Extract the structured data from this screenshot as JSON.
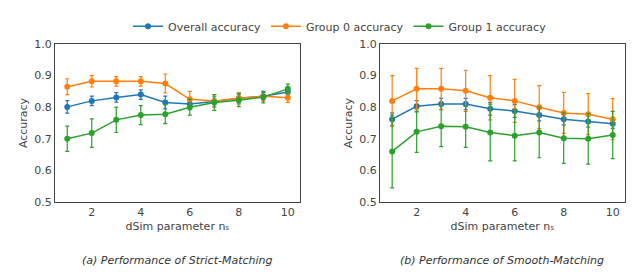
{
  "chart_data": [
    {
      "type": "line",
      "title": "(a) Performance of Strict-Matching",
      "x_label": "dSim parameter nₛ",
      "y_label": "Accuracy",
      "x": [
        1,
        2,
        3,
        4,
        5,
        6,
        7,
        8,
        9,
        10
      ],
      "xlim": [
        0.5,
        10.5
      ],
      "xticks": [
        2,
        4,
        6,
        8,
        10
      ],
      "ylim": [
        0.5,
        1.0
      ],
      "yticks": [
        0.5,
        0.6,
        0.7,
        0.8,
        0.9,
        {
          "value": 1.0,
          "label": "1.0"
        }
      ],
      "grid": false,
      "legend": "top",
      "marker": "circle",
      "series": [
        {
          "name": "Overall accuracy",
          "color": "#1f77b4",
          "values": [
            0.801,
            0.82,
            0.831,
            0.84,
            0.815,
            0.81,
            0.818,
            0.828,
            0.835,
            0.848
          ],
          "errors": [
            0.02,
            0.015,
            0.015,
            0.015,
            0.02,
            0.018,
            0.015,
            0.015,
            0.012,
            0.012
          ]
        },
        {
          "name": "Group 0 accuracy",
          "color": "#ff7f0e",
          "values": [
            0.865,
            0.882,
            0.882,
            0.882,
            0.875,
            0.825,
            0.82,
            0.828,
            0.835,
            0.83
          ],
          "errors": [
            0.025,
            0.018,
            0.015,
            0.015,
            0.03,
            0.025,
            0.02,
            0.018,
            0.015,
            0.015
          ]
        },
        {
          "name": "Group 1 accuracy",
          "color": "#2ca02c",
          "values": [
            0.7,
            0.718,
            0.76,
            0.775,
            0.778,
            0.8,
            0.815,
            0.822,
            0.832,
            0.858
          ],
          "errors": [
            0.04,
            0.045,
            0.04,
            0.03,
            0.03,
            0.025,
            0.025,
            0.02,
            0.018,
            0.015
          ]
        }
      ]
    },
    {
      "type": "line",
      "title": "(b) Performance of Smooth-Matching",
      "x_label": "dSim parameter nₛ",
      "y_label": "Accuracy",
      "x": [
        1,
        2,
        3,
        4,
        5,
        6,
        7,
        8,
        9,
        10
      ],
      "xlim": [
        0.5,
        10.5
      ],
      "xticks": [
        2,
        4,
        6,
        8,
        10
      ],
      "ylim": [
        0.5,
        1.0
      ],
      "yticks": [
        0.5,
        0.6,
        0.7,
        0.8,
        0.9,
        {
          "value": 1.0,
          "label": "1.0"
        }
      ],
      "grid": false,
      "legend": "top",
      "marker": "circle",
      "series": [
        {
          "name": "Overall accuracy",
          "color": "#1f77b4",
          "values": [
            0.762,
            0.803,
            0.81,
            0.81,
            0.795,
            0.788,
            0.775,
            0.762,
            0.755,
            0.748
          ],
          "errors": [
            0.02,
            0.018,
            0.018,
            0.018,
            0.02,
            0.02,
            0.018,
            0.018,
            0.018,
            0.015
          ]
        },
        {
          "name": "Group 0 accuracy",
          "color": "#ff7f0e",
          "values": [
            0.82,
            0.858,
            0.858,
            0.852,
            0.83,
            0.82,
            0.8,
            0.782,
            0.778,
            0.762
          ],
          "errors": [
            0.08,
            0.065,
            0.065,
            0.065,
            0.07,
            0.068,
            0.068,
            0.065,
            0.065,
            0.065
          ]
        },
        {
          "name": "Group 1 accuracy",
          "color": "#2ca02c",
          "values": [
            0.66,
            0.722,
            0.74,
            0.738,
            0.72,
            0.71,
            0.72,
            0.702,
            0.7,
            0.712
          ],
          "errors": [
            0.115,
            0.065,
            0.065,
            0.065,
            0.09,
            0.08,
            0.08,
            0.08,
            0.08,
            0.075
          ]
        }
      ]
    }
  ]
}
